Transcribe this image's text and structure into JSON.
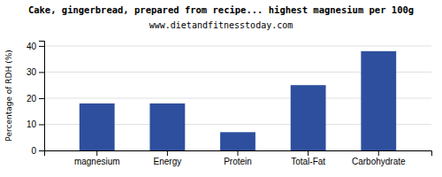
{
  "chart_data": {
    "type": "bar",
    "title": "Cake, gingerbread, prepared from recipe... highest magnesium per 100g",
    "subtitle": "www.dietandfitnesstoday.com",
    "categories": [
      "magnesium",
      "Energy",
      "Protein",
      "Total-Fat",
      "Carbohydrate"
    ],
    "values": [
      18,
      18,
      7,
      25,
      38
    ],
    "color": "#2d4f9e",
    "ylabel": "Percentage of RDH (%)",
    "ylim": [
      0,
      42
    ],
    "yticks": [
      0,
      10,
      20,
      30,
      40
    ],
    "grid": true
  }
}
